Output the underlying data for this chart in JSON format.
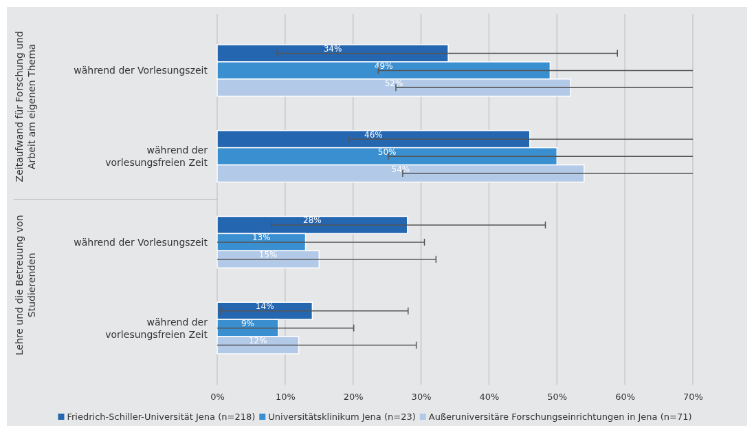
{
  "chart_data": {
    "type": "bar",
    "orientation": "horizontal",
    "categories": [
      "während der Vorlesungszeit",
      "während der vorlesungsfreien Zeit",
      "während der Vorlesungszeit",
      "während der vorlesungsfreien Zeit"
    ],
    "annotations": [
      "Zeitaufwand für Forschung und Arbeit am eigenen Thema",
      "Lehre und die Betreuung von Studierenden"
    ],
    "series": [
      {
        "name": "Friedrich-Schiller-Universität Jena (n=218)",
        "color": "#2566b0",
        "values": [
          34,
          46,
          28,
          14
        ],
        "value_labels": [
          "34%",
          "46%",
          "28%",
          "14%"
        ],
        "errors": [
          [
            8.8,
            58.9
          ],
          [
            19.4,
            70
          ],
          [
            8.0,
            48.3
          ],
          [
            0.5,
            28.1
          ]
        ]
      },
      {
        "name": "Universitätsklinikum Jena (n=23)",
        "color": "#3a8fd0",
        "values": [
          49,
          50,
          13,
          9
        ],
        "value_labels": [
          "49%",
          "50%",
          "13%",
          "9%"
        ],
        "errors": [
          [
            23.7,
            70
          ],
          [
            25.2,
            70
          ],
          [
            0,
            30.5
          ],
          [
            0,
            20.1
          ]
        ]
      },
      {
        "name": "Außeruniversitäre Forschungseinrichtungen in Jena (n=71)",
        "color": "#b3c9e8",
        "values": [
          52,
          54,
          15,
          12
        ],
        "value_labels": [
          "52%",
          "54%",
          "15%",
          "12%"
        ],
        "errors": [
          [
            26.3,
            70
          ],
          [
            27.3,
            70
          ],
          [
            0,
            32.2
          ],
          [
            0,
            29.3
          ]
        ]
      }
    ],
    "xlim": [
      0,
      70
    ],
    "xticks": [
      {
        "value": 0,
        "label": "0%"
      },
      {
        "value": 10,
        "label": "10%"
      },
      {
        "value": 20,
        "label": "20%"
      },
      {
        "value": 30,
        "label": "30%"
      },
      {
        "value": 40,
        "label": "40%"
      },
      {
        "value": 50,
        "label": "50%"
      },
      {
        "value": 60,
        "label": "60%"
      },
      {
        "value": 70,
        "label": "70%"
      }
    ],
    "grid": "x",
    "legend": "bottom"
  }
}
